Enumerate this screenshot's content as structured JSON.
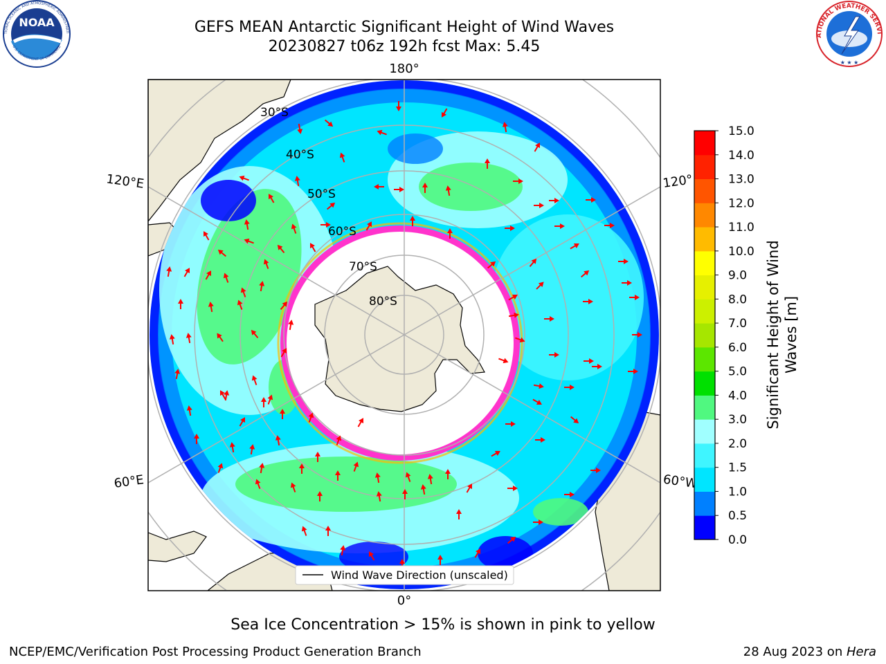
{
  "title": {
    "line1": "GEFS MEAN Antarctic Significant Height of Wind Waves",
    "line2": "20230827 t06z 192h fcst   Max: 5.45"
  },
  "logos": {
    "left": {
      "name": "NOAA",
      "ring_text": "NATIONAL OCEANIC AND ATMOSPHERIC ADMINISTRATION",
      "bottom_text": "U.S. DEPARTMENT OF COMMERCE",
      "color": "#1a3e91"
    },
    "right": {
      "ring_text": "NATIONAL WEATHER SERVICE",
      "color": "#d8232a"
    }
  },
  "map": {
    "projection": "south polar stereographic",
    "longitude_labels": {
      "top": "180°",
      "bottom": "0°",
      "upper_left": "120°E",
      "upper_right": "120°",
      "lower_left": "60°E",
      "lower_right": "60°W"
    },
    "latitude_labels": [
      "30°S",
      "40°S",
      "50°S",
      "60°S",
      "70°S",
      "80°S"
    ],
    "legend": "Wind Wave Direction (unscaled)",
    "colors": {
      "land": "#eeead8",
      "ice": "#ffffff",
      "arrow": "#ff0000",
      "grid": "#b0b0b0",
      "ice_edge": "#ff33cc"
    }
  },
  "colorbar": {
    "label_line1": "Significant Height of Wind",
    "label_line2": "Waves [m]",
    "ticks": [
      "0.0",
      "0.5",
      "1.0",
      "1.5",
      "2.0",
      "3.0",
      "4.0",
      "5.0",
      "6.0",
      "7.0",
      "8.0",
      "9.0",
      "10.0",
      "11.0",
      "12.0",
      "13.0",
      "14.0",
      "15.0"
    ],
    "colors": [
      "#0000ff",
      "#0080ff",
      "#00e5ff",
      "#3ff5ff",
      "#a0ffff",
      "#50f880",
      "#00e000",
      "#5ce600",
      "#a6e600",
      "#ccf000",
      "#e6f000",
      "#ffff00",
      "#ffbb00",
      "#ff8800",
      "#ff5500",
      "#ff2200",
      "#ff0000"
    ]
  },
  "sea_ice_note": "Sea Ice Concentration > 15% is shown in pink to yellow",
  "footer": {
    "left": "NCEP/EMC/Verification Post Processing Product Generation Branch",
    "right_date": "28 Aug 2023 on ",
    "right_host": "Hera"
  }
}
